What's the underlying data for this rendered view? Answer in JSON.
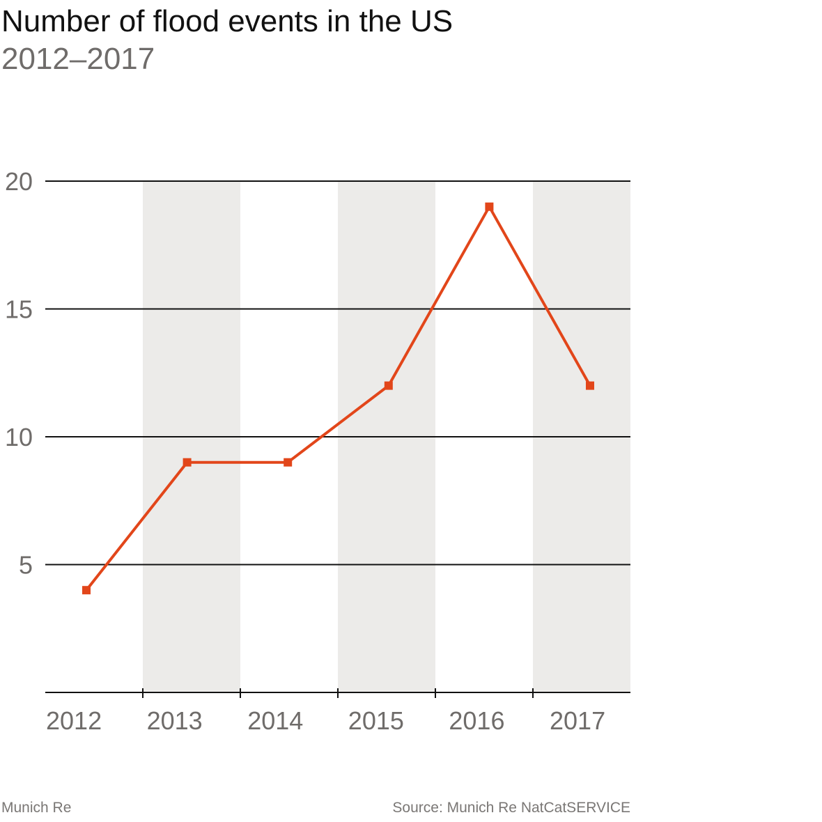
{
  "title": "Number of flood events in the US",
  "subtitle": "2012–2017",
  "footer": {
    "brand": "Munich Re",
    "source": "Source: Munich Re NatCatSERVICE"
  },
  "colors": {
    "line": "#e2461a",
    "band": "#ecebe9",
    "axis_text": "#6f6c6a",
    "grid": "#111111"
  },
  "chart_data": {
    "type": "line",
    "title": "Number of flood events in the US",
    "subtitle": "2012–2017",
    "categories": [
      "2012",
      "2013",
      "2014",
      "2015",
      "2016",
      "2017"
    ],
    "values": [
      4,
      9,
      9,
      12,
      19,
      12
    ],
    "ylim": [
      0,
      20
    ],
    "yticks": [
      5,
      10,
      15,
      20
    ],
    "grid": true,
    "legend": "none",
    "marker": "square"
  }
}
